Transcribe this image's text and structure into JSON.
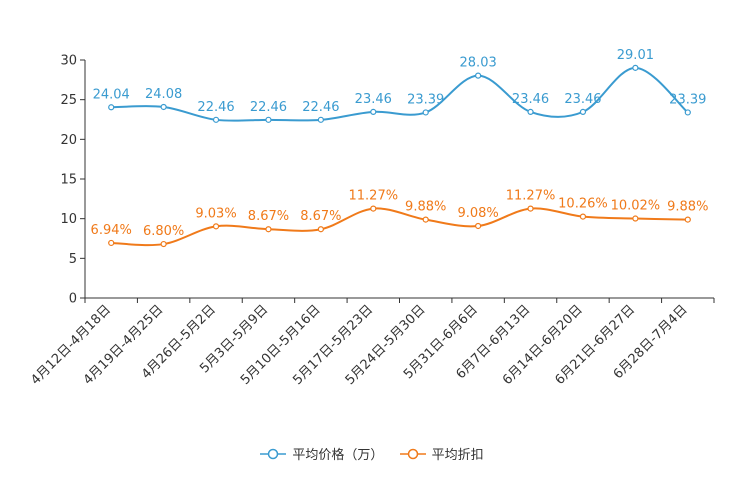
{
  "chart_data": {
    "type": "line",
    "categories": [
      "4月12日-4月18日",
      "4月19日-4月25日",
      "4月26日-5月2日",
      "5月3日-5月9日",
      "5月10日-5月16日",
      "5月17日-5月23日",
      "5月24日-5月30日",
      "5月31日-6月6日",
      "6月7日-6月13日",
      "6月14日-6月20日",
      "6月21日-6月27日",
      "6月28日-7月4日"
    ],
    "series": [
      {
        "name": "平均价格（万）",
        "color": "#3a9bd0",
        "values": [
          24.04,
          24.08,
          22.46,
          22.46,
          22.46,
          23.46,
          23.39,
          28.03,
          23.46,
          23.46,
          29.01,
          23.39
        ],
        "labels": [
          "24.04",
          "24.08",
          "22.46",
          "22.46",
          "22.46",
          "23.46",
          "23.39",
          "28.03",
          "23.46",
          "23.46",
          "29.01",
          "23.39"
        ]
      },
      {
        "name": "平均折扣",
        "color": "#f07a1a",
        "values": [
          6.94,
          6.8,
          9.03,
          8.67,
          8.67,
          11.27,
          9.88,
          9.08,
          11.27,
          10.26,
          10.02,
          9.88
        ],
        "labels": [
          "6.94%",
          "6.80%",
          "9.03%",
          "8.67%",
          "8.67%",
          "11.27%",
          "9.88%",
          "9.08%",
          "11.27%",
          "10.26%",
          "10.02%",
          "9.88%"
        ]
      }
    ],
    "yticks": [
      0,
      5,
      10,
      15,
      20,
      25,
      30
    ],
    "ylim": [
      0,
      30
    ],
    "grid": false,
    "legend_position": "bottom-center"
  },
  "legend": {
    "series0": "平均价格（万）",
    "series1": "平均折扣"
  }
}
